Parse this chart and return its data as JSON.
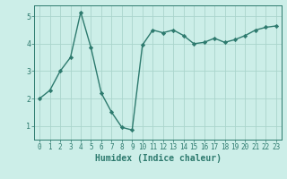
{
  "x": [
    0,
    1,
    2,
    3,
    4,
    5,
    6,
    7,
    8,
    9,
    10,
    11,
    12,
    13,
    14,
    15,
    16,
    17,
    18,
    19,
    20,
    21,
    22,
    23
  ],
  "y": [
    2.0,
    2.3,
    3.0,
    3.5,
    5.15,
    3.85,
    2.2,
    1.5,
    0.95,
    0.85,
    3.95,
    4.5,
    4.4,
    4.5,
    4.3,
    4.0,
    4.05,
    4.2,
    4.05,
    4.15,
    4.3,
    4.5,
    4.6,
    4.65
  ],
  "xlabel": "Humidex (Indice chaleur)",
  "ylim": [
    0.5,
    5.4
  ],
  "xlim": [
    -0.5,
    23.5
  ],
  "yticks": [
    1,
    2,
    3,
    4,
    5
  ],
  "xticks": [
    0,
    1,
    2,
    3,
    4,
    5,
    6,
    7,
    8,
    9,
    10,
    11,
    12,
    13,
    14,
    15,
    16,
    17,
    18,
    19,
    20,
    21,
    22,
    23
  ],
  "line_color": "#2d7a6e",
  "marker": "D",
  "marker_size": 2.2,
  "line_width": 1.0,
  "bg_color": "#cceee8",
  "grid_color": "#aad4cc",
  "tick_fontsize": 5.5,
  "xlabel_fontsize": 7.0
}
